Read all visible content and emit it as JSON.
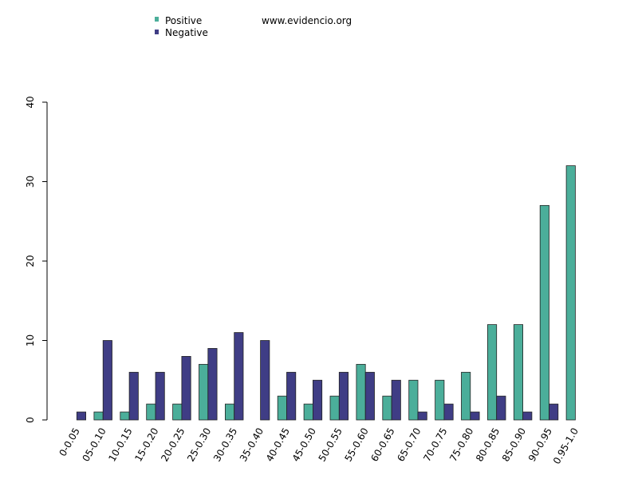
{
  "watermark": "www.evidencio.org",
  "colors": {
    "positive": "#4bae9a",
    "negative": "#3f3d85",
    "axis": "#000000"
  },
  "chart_data": {
    "type": "bar",
    "categories": [
      "0-0.05",
      "05-0.10",
      "10-0.15",
      "15-0.20",
      "20-0.25",
      "25-0.30",
      "30-0.35",
      "35-0.40",
      "40-0.45",
      "45-0.50",
      "50-0.55",
      "55-0.60",
      "60-0.65",
      "65-0.70",
      "70-0.75",
      "75-0.80",
      "80-0.85",
      "85-0.90",
      "90-0.95",
      "0.95-1.0"
    ],
    "series": [
      {
        "name": "Positive",
        "values": [
          0,
          1,
          1,
          2,
          2,
          7,
          2,
          0,
          3,
          2,
          3,
          7,
          3,
          5,
          5,
          6,
          12,
          12,
          27,
          32
        ]
      },
      {
        "name": "Negative",
        "values": [
          1,
          10,
          6,
          6,
          8,
          9,
          11,
          10,
          6,
          5,
          6,
          6,
          5,
          1,
          2,
          1,
          3,
          1,
          2,
          0
        ]
      }
    ],
    "ylim": [
      0,
      40
    ],
    "yticks": [
      0,
      10,
      20,
      30,
      40
    ],
    "legend_position": "top-left",
    "grid": false
  }
}
